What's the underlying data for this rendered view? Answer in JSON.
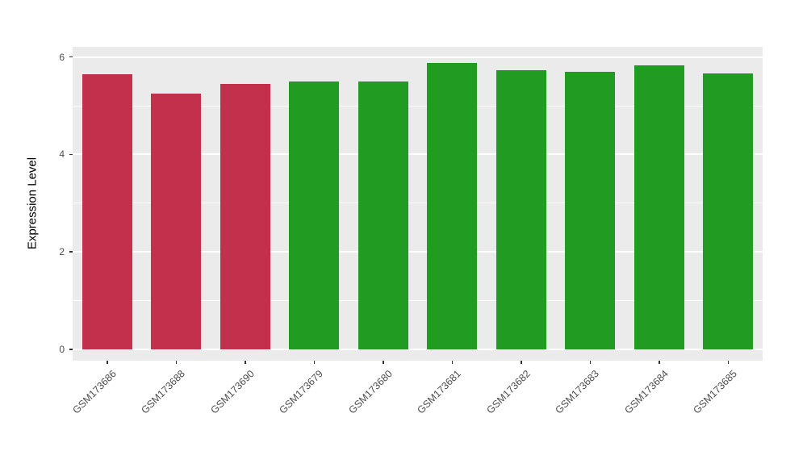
{
  "chart_data": {
    "type": "bar",
    "title": "",
    "xlabel": "",
    "ylabel": "Expression Level",
    "categories": [
      "GSM173686",
      "GSM173688",
      "GSM173690",
      "GSM173679",
      "GSM173680",
      "GSM173681",
      "GSM173682",
      "GSM173683",
      "GSM173684",
      "GSM173685"
    ],
    "values": [
      5.65,
      5.25,
      5.45,
      5.5,
      5.5,
      5.88,
      5.73,
      5.7,
      5.83,
      5.67
    ],
    "bar_colors": [
      "#C2304B",
      "#C2304B",
      "#C2304B",
      "#229B22",
      "#229B22",
      "#229B22",
      "#229B22",
      "#229B22",
      "#229B22",
      "#229B22"
    ],
    "ylim": [
      0,
      6
    ],
    "y_ticks": [
      0,
      2,
      4,
      6
    ],
    "y_minor_ticks": [
      1,
      3,
      5
    ],
    "grid": "on",
    "legend": "none"
  },
  "colors": {
    "panel_background": "#EBEBEB",
    "gridline": "#FFFFFF",
    "axis_text": "#4D4D4D",
    "red_group": "#C2304B",
    "green_group": "#229B22"
  }
}
